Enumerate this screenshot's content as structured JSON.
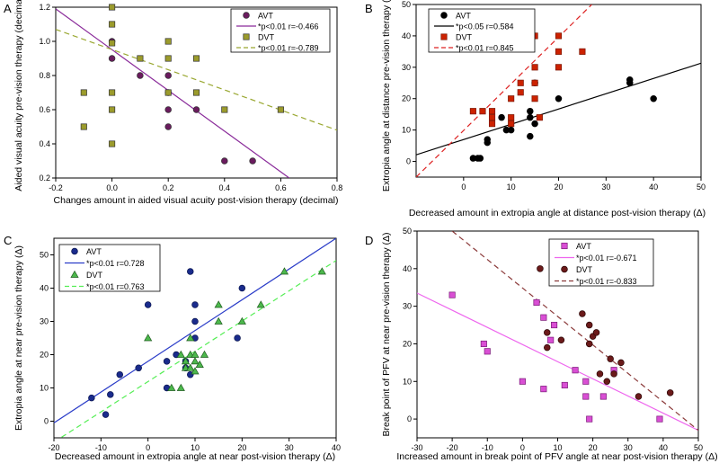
{
  "chart_data": [
    {
      "id": "A",
      "panel_label": "A",
      "type": "scatter",
      "xlabel": "Changes amount in aided visual acuity post-vision therapy (decimal)",
      "ylabel": "Aided visual acuity pre-vision therapy (decimal)",
      "xlim": [
        -0.2,
        0.8
      ],
      "ylim": [
        0.2,
        1.2
      ],
      "xticks": [
        -0.2,
        0.0,
        0.2,
        0.4,
        0.6,
        0.8
      ],
      "xtick_labels": [
        "-0.2",
        "0.0",
        "0.2",
        "0.4",
        "0.6",
        "0.8"
      ],
      "yticks": [
        0.2,
        0.4,
        0.6,
        0.8,
        1.0,
        1.2
      ],
      "ytick_labels": [
        "0.2",
        "0.4",
        "0.6",
        "0.8",
        "1.0",
        "1.2"
      ],
      "legend_position": "top-right",
      "series": [
        {
          "name": "AVT",
          "marker": "circle",
          "color": "#6a1b5e",
          "edge": "#333333",
          "points": [
            [
              0.0,
              0.9
            ],
            [
              0.0,
              1.0
            ],
            [
              0.1,
              0.8
            ],
            [
              0.2,
              0.8
            ],
            [
              0.2,
              0.7
            ],
            [
              0.2,
              0.6
            ],
            [
              0.2,
              0.5
            ],
            [
              0.3,
              0.6
            ],
            [
              0.4,
              0.3
            ],
            [
              0.5,
              0.3
            ]
          ]
        },
        {
          "name": "DVT",
          "marker": "square",
          "color": "#9b9b2c",
          "edge": "#333333",
          "points": [
            [
              -0.1,
              0.7
            ],
            [
              -0.1,
              0.5
            ],
            [
              0.0,
              1.2
            ],
            [
              0.0,
              1.1
            ],
            [
              0.0,
              0.99
            ],
            [
              0.0,
              0.7
            ],
            [
              0.0,
              0.6
            ],
            [
              0.0,
              0.4
            ],
            [
              0.1,
              0.9
            ],
            [
              0.2,
              1.0
            ],
            [
              0.2,
              0.9
            ],
            [
              0.2,
              0.7
            ],
            [
              0.3,
              0.9
            ],
            [
              0.3,
              0.7
            ],
            [
              0.4,
              0.6
            ],
            [
              0.6,
              0.6
            ]
          ]
        }
      ],
      "fits": [
        {
          "name": "AVT",
          "label": "*p<0.01 r=-0.466",
          "color": "#8a2b9a",
          "dash": false,
          "x": [
            -0.2,
            0.63
          ],
          "y": [
            1.19,
            0.2
          ]
        },
        {
          "name": "DVT",
          "label": "*p<0.01 r=-0.789",
          "color": "#9aa832",
          "dash": true,
          "x": [
            -0.2,
            0.8
          ],
          "y": [
            1.07,
            0.48
          ]
        }
      ]
    },
    {
      "id": "B",
      "panel_label": "B",
      "type": "scatter",
      "xlabel": "Decreased amount in extropia angle at distance post-vision therapy (Δ)",
      "ylabel": "Extropia angle at distance pre-vision therapy (Δ)",
      "xlim": [
        -10,
        50
      ],
      "ylim": [
        -5,
        50
      ],
      "xticks": [
        0,
        10,
        20,
        30,
        40,
        50
      ],
      "xtick_labels": [
        "0",
        "10",
        "20",
        "30",
        "40",
        "50"
      ],
      "yticks": [
        0,
        10,
        20,
        30,
        40,
        50
      ],
      "ytick_labels": [
        "0",
        "10",
        "20",
        "30",
        "40",
        "50"
      ],
      "legend_position": "top-left",
      "series": [
        {
          "name": "AVT",
          "marker": "circle",
          "color": "#000000",
          "edge": "#000000",
          "points": [
            [
              2,
              1
            ],
            [
              3,
              1
            ],
            [
              3.5,
              1
            ],
            [
              5,
              6
            ],
            [
              5,
              7
            ],
            [
              8,
              14
            ],
            [
              9,
              10
            ],
            [
              10,
              10
            ],
            [
              12,
              45
            ],
            [
              14,
              8
            ],
            [
              14,
              14
            ],
            [
              14,
              16
            ],
            [
              15,
              25
            ],
            [
              15,
              12
            ],
            [
              20,
              20
            ],
            [
              35,
              25
            ],
            [
              35,
              26
            ],
            [
              40,
              20
            ]
          ]
        },
        {
          "name": "DVT",
          "marker": "square",
          "color": "#cc2200",
          "edge": "#7a1500",
          "points": [
            [
              2,
              16
            ],
            [
              4,
              16
            ],
            [
              6,
              16
            ],
            [
              6,
              14
            ],
            [
              6,
              12
            ],
            [
              10,
              20
            ],
            [
              10,
              14
            ],
            [
              10,
              12
            ],
            [
              12,
              25
            ],
            [
              12,
              22
            ],
            [
              15,
              40
            ],
            [
              15,
              30
            ],
            [
              15,
              25
            ],
            [
              15,
              20
            ],
            [
              16,
              14
            ],
            [
              20,
              40
            ],
            [
              20,
              35
            ],
            [
              20,
              30
            ],
            [
              25,
              35
            ]
          ]
        }
      ],
      "fits": [
        {
          "name": "AVT",
          "label": "*p<0.05 r=0.584",
          "color": "#000000",
          "dash": false,
          "x": [
            -10,
            50
          ],
          "y": [
            2.1,
            31.3
          ]
        },
        {
          "name": "DVT",
          "label": "*p<0.01 r=0.845",
          "color": "#dd2222",
          "dash": true,
          "x": [
            -10,
            27
          ],
          "y": [
            -5,
            50
          ]
        }
      ]
    },
    {
      "id": "C",
      "panel_label": "C",
      "type": "scatter",
      "xlabel": "Decreased amount in extropia angle at near post-vision therapy (Δ)",
      "ylabel": "Extropia angle at near pre-vision therapy (Δ)",
      "xlim": [
        -20,
        40
      ],
      "ylim": [
        -5,
        55
      ],
      "xticks": [
        -20,
        -10,
        0,
        10,
        20,
        30,
        40
      ],
      "xtick_labels": [
        "-20",
        "-10",
        "0",
        "10",
        "20",
        "30",
        "40"
      ],
      "yticks": [
        0,
        10,
        20,
        30,
        40,
        50
      ],
      "ytick_labels": [
        "0",
        "10",
        "20",
        "30",
        "40",
        "50"
      ],
      "legend_position": "top-left",
      "series": [
        {
          "name": "AVT",
          "marker": "circle",
          "color": "#1a2b8c",
          "edge": "#0a1650",
          "points": [
            [
              -12,
              7
            ],
            [
              -9,
              2
            ],
            [
              -8,
              8
            ],
            [
              -6,
              14
            ],
            [
              -2,
              16
            ],
            [
              0,
              35
            ],
            [
              4,
              10
            ],
            [
              4,
              18
            ],
            [
              6,
              20
            ],
            [
              8,
              16
            ],
            [
              8,
              18
            ],
            [
              9,
              45
            ],
            [
              9,
              14
            ],
            [
              10,
              25
            ],
            [
              10,
              30
            ],
            [
              10,
              35
            ],
            [
              19,
              25
            ],
            [
              20,
              40
            ]
          ]
        },
        {
          "name": "DVT",
          "marker": "triangle",
          "color": "#4cb84c",
          "edge": "#1e5a1e",
          "points": [
            [
              0,
              25
            ],
            [
              5,
              10
            ],
            [
              7,
              10
            ],
            [
              7,
              20
            ],
            [
              8,
              18
            ],
            [
              8,
              16
            ],
            [
              9,
              20
            ],
            [
              9,
              25
            ],
            [
              9,
              16
            ],
            [
              10,
              15
            ],
            [
              10,
              18
            ],
            [
              10,
              20
            ],
            [
              11,
              17
            ],
            [
              12,
              20
            ],
            [
              15,
              35
            ],
            [
              15,
              30
            ],
            [
              20,
              30
            ],
            [
              24,
              35
            ],
            [
              29,
              45
            ],
            [
              37,
              45
            ]
          ]
        }
      ],
      "fits": [
        {
          "name": "AVT",
          "label": "*p<0.01 r=0.728",
          "color": "#2a3cc8",
          "dash": false,
          "x": [
            -20,
            40
          ],
          "y": [
            -0.5,
            55
          ]
        },
        {
          "name": "DVT",
          "label": "*p<0.01 r=0.763",
          "color": "#55ee55",
          "dash": true,
          "x": [
            -20,
            40
          ],
          "y": [
            -6.3,
            48.3
          ]
        }
      ]
    },
    {
      "id": "D",
      "panel_label": "D",
      "type": "scatter",
      "xlabel": "Increased amount in break point of PFV angle at near post-vision therapy (Δ)",
      "ylabel": "Break point of PFV at near pre-vision therapy (Δ)",
      "xlim": [
        -30,
        50
      ],
      "ylim": [
        -5,
        50
      ],
      "xticks": [
        -30,
        -20,
        -10,
        0,
        10,
        20,
        30,
        40,
        50
      ],
      "xtick_labels": [
        "-30",
        "-20",
        "-10",
        "0",
        "10",
        "20",
        "30",
        "40",
        "50"
      ],
      "yticks": [
        0,
        10,
        20,
        30,
        40,
        50
      ],
      "ytick_labels": [
        "0",
        "10",
        "20",
        "30",
        "40",
        "50"
      ],
      "legend_position": "top-right",
      "series": [
        {
          "name": "AVT",
          "marker": "square",
          "color": "#d94fd4",
          "edge": "#7a1a78",
          "points": [
            [
              -20,
              33
            ],
            [
              -11,
              20
            ],
            [
              -10,
              18
            ],
            [
              0,
              10
            ],
            [
              4,
              31
            ],
            [
              6,
              8
            ],
            [
              6,
              27
            ],
            [
              8,
              21
            ],
            [
              9,
              25
            ],
            [
              12,
              9
            ],
            [
              15,
              13
            ],
            [
              18,
              6
            ],
            [
              18,
              10
            ],
            [
              19,
              0
            ],
            [
              23,
              6
            ],
            [
              26,
              13
            ],
            [
              39,
              0
            ]
          ]
        },
        {
          "name": "DVT",
          "marker": "circle",
          "color": "#6b1a1a",
          "edge": "#2a0505",
          "points": [
            [
              5,
              40
            ],
            [
              7,
              23
            ],
            [
              7,
              19
            ],
            [
              11,
              21
            ],
            [
              17,
              28
            ],
            [
              19,
              25
            ],
            [
              19,
              20
            ],
            [
              20,
              22
            ],
            [
              21,
              23
            ],
            [
              22,
              12
            ],
            [
              24,
              10
            ],
            [
              25,
              16
            ],
            [
              26,
              12
            ],
            [
              28,
              15
            ],
            [
              33,
              6
            ],
            [
              42,
              7
            ]
          ]
        }
      ],
      "fits": [
        {
          "name": "AVT",
          "label": "*p<0.01 r=-0.671",
          "color": "#ee66ee",
          "dash": false,
          "x": [
            -30,
            50
          ],
          "y": [
            33.5,
            -3
          ]
        },
        {
          "name": "DVT",
          "label": "*p<0.01 r=-0.833",
          "color": "#8b3a3a",
          "dash": true,
          "x": [
            -20,
            50
          ],
          "y": [
            50,
            -3
          ]
        }
      ]
    }
  ]
}
